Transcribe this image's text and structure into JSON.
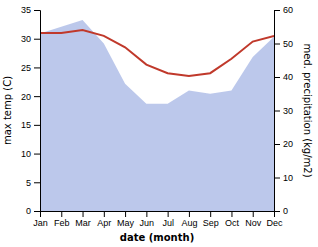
{
  "chart_data": {
    "type": "line",
    "xlabel": "date (month)",
    "ylabel": "max temp (C)",
    "y2label": "med. precipitation (kg/m2)",
    "categories": [
      "Jan",
      "Feb",
      "Mar",
      "Apr",
      "May",
      "Jun",
      "Jul",
      "Aug",
      "Sep",
      "Oct",
      "Nov",
      "Dec"
    ],
    "series": [
      {
        "type": "area",
        "color": "#b0bee8",
        "axis": "y2",
        "values": [
          53,
          55,
          57,
          50,
          38,
          32,
          32,
          36,
          35,
          36,
          46,
          52
        ]
      },
      {
        "type": "line",
        "color": "#c0392b",
        "values": [
          31.0,
          31.0,
          31.5,
          30.5,
          28.5,
          25.5,
          24.0,
          23.5,
          24.0,
          26.5,
          29.5,
          30.5
        ]
      }
    ],
    "ylim": [
      0,
      35
    ],
    "yticks": [
      0,
      5,
      10,
      15,
      20,
      25,
      30,
      35
    ],
    "y2lim": [
      0,
      60
    ],
    "y2ticks": [
      0,
      10,
      20,
      30,
      40,
      50,
      60
    ],
    "grid": false
  }
}
